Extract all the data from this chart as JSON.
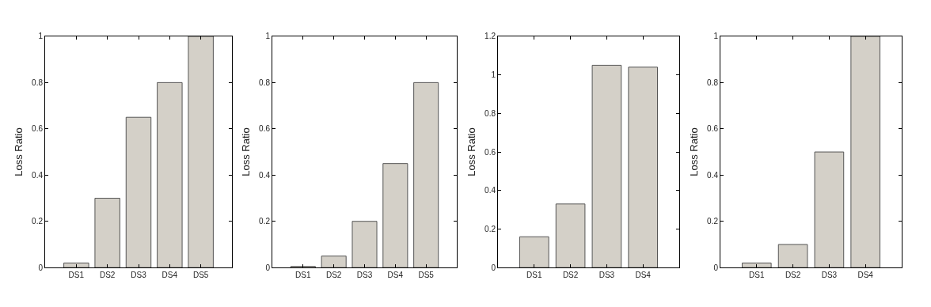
{
  "chart_data": [
    {
      "type": "bar",
      "ylabel": "Loss Ratio",
      "categories": [
        "DS1",
        "DS2",
        "DS3",
        "DS4",
        "DS5"
      ],
      "values": [
        0.02,
        0.3,
        0.65,
        0.8,
        1
      ],
      "color": "#d4d0c8",
      "ylim": [
        0,
        1
      ],
      "yticks": [
        0,
        0.2,
        0.4,
        0.6,
        0.8,
        1
      ]
    },
    {
      "type": "bar",
      "ylabel": "Loss Ratio",
      "categories": [
        "DS1",
        "DS2",
        "DS3",
        "DS4",
        "DS5"
      ],
      "values": [
        0.005,
        0.05,
        0.2,
        0.45,
        0.8
      ],
      "color": "#d4d0c8",
      "ylim": [
        0,
        1
      ],
      "yticks": [
        0,
        0.2,
        0.4,
        0.6,
        0.8,
        1
      ]
    },
    {
      "type": "bar",
      "ylabel": "Loss Ratio",
      "categories": [
        "DS1",
        "DS2",
        "DS3",
        "DS4"
      ],
      "values": [
        0.16,
        0.33,
        1.05,
        1.04
      ],
      "color": "#d4d0c8",
      "ylim": [
        0,
        1.2
      ],
      "yticks": [
        0,
        0.2,
        0.4,
        0.6,
        0.8,
        1,
        1.2
      ]
    },
    {
      "type": "bar",
      "ylabel": "Loss Ratio",
      "categories": [
        "DS1",
        "DS2",
        "DS3",
        "DS4"
      ],
      "values": [
        0.02,
        0.1,
        0.5,
        1
      ],
      "color": "#d4d0c8",
      "ylim": [
        0,
        1
      ],
      "yticks": [
        0,
        0.2,
        0.4,
        0.6,
        0.8,
        1
      ]
    }
  ]
}
